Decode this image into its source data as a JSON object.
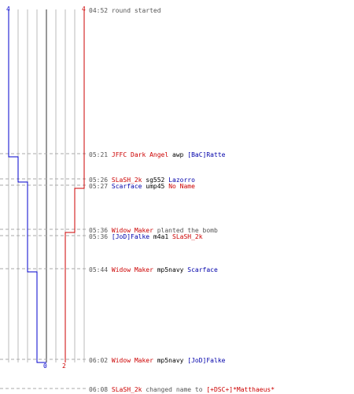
{
  "colors": {
    "red_team": "#cc0000",
    "blue_team": "#0000cc",
    "grid": "#bbbbbb",
    "dash": "#aaaaaa",
    "zero_line": "#777777",
    "time": "#555555"
  },
  "score_chart": {
    "top_blue_label": "4",
    "top_red_label": "4",
    "bottom_blue_label": "0",
    "bottom_red_label": "2"
  },
  "events": [
    {
      "time": "04:52",
      "parts": [
        {
          "text": "round started",
          "team": "g"
        }
      ]
    },
    {
      "time": "05:21",
      "parts": [
        {
          "text": "JFFC Dark Angel",
          "team": "r"
        },
        {
          "text": "awp",
          "team": "n"
        },
        {
          "text": "[BaC]Ratte",
          "team": "b"
        }
      ]
    },
    {
      "time": "05:26",
      "parts": [
        {
          "text": "SLaSH_2k",
          "team": "r"
        },
        {
          "text": "sg552",
          "team": "n"
        },
        {
          "text": "Lazorro",
          "team": "b"
        }
      ]
    },
    {
      "time": "05:27",
      "parts": [
        {
          "text": "Scarface",
          "team": "b"
        },
        {
          "text": "ump45",
          "team": "n"
        },
        {
          "text": "No Name",
          "team": "r"
        }
      ]
    },
    {
      "time": "05:36",
      "parts": [
        {
          "text": "Widow Maker",
          "team": "r"
        },
        {
          "text": "planted the bomb",
          "team": "g"
        }
      ]
    },
    {
      "time": "05:36",
      "parts": [
        {
          "text": "[JoD]Falke",
          "team": "b"
        },
        {
          "text": "m4a1",
          "team": "n"
        },
        {
          "text": "SLaSH_2k",
          "team": "r"
        }
      ]
    },
    {
      "time": "05:44",
      "parts": [
        {
          "text": "Widow Maker",
          "team": "r"
        },
        {
          "text": "mp5navy",
          "team": "n"
        },
        {
          "text": "Scarface",
          "team": "b"
        }
      ]
    },
    {
      "time": "06:02",
      "parts": [
        {
          "text": "Widow Maker",
          "team": "r"
        },
        {
          "text": "mp5navy",
          "team": "n"
        },
        {
          "text": "[JoD]Falke",
          "team": "b"
        }
      ]
    },
    {
      "time": "06:08",
      "parts": [
        {
          "text": "SLaSH_2k",
          "team": "r"
        },
        {
          "text": "changed name to",
          "team": "g"
        },
        {
          "text": "[+DSC+]*Matthaeus*",
          "team": "r"
        }
      ]
    }
  ]
}
